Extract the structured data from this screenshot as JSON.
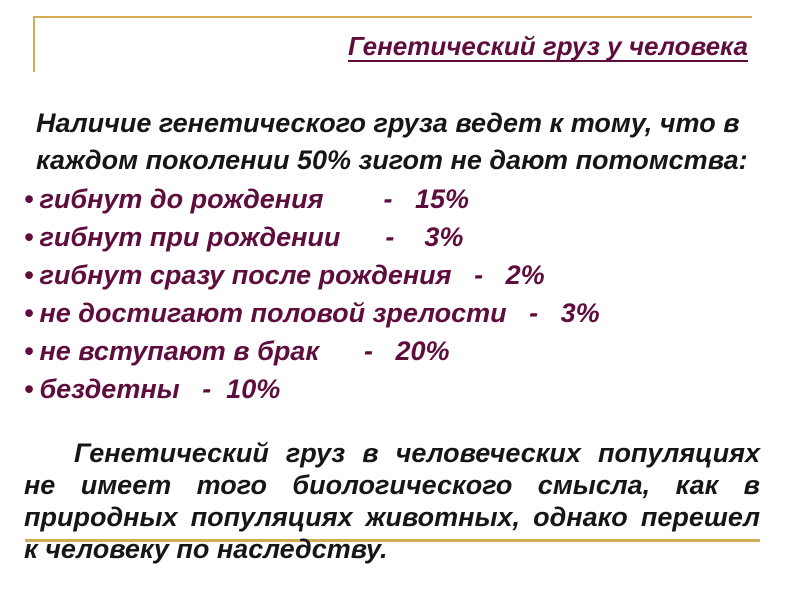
{
  "slide": {
    "title": "Генетический груз у человека",
    "intro_lines": [
      "Наличие генетического груза ведет к тому, что в",
      "каждом поколении 50% зигот не дают потомства:"
    ],
    "bullet_char": "•",
    "bullets": [
      "гибнут до рождения        -   15%",
      "гибнут при рождении      -    3%",
      "гибнут сразу после рождения   -   2%",
      "не достигают половой зрелости   -   3%",
      "не вступают в брак      -   20%",
      "бездетны   -  10%"
    ],
    "closing_lines": [
      "Генетический груз в человеческих популяциях",
      "не имеет того биологического смысла, как в",
      "природных популяциях животных, однако перешел",
      "к человеку по наследству."
    ],
    "colors": {
      "maroon": "#5e0d3c",
      "text": "#161616",
      "gold": "#d3ac56",
      "background": "#ffffff"
    }
  }
}
